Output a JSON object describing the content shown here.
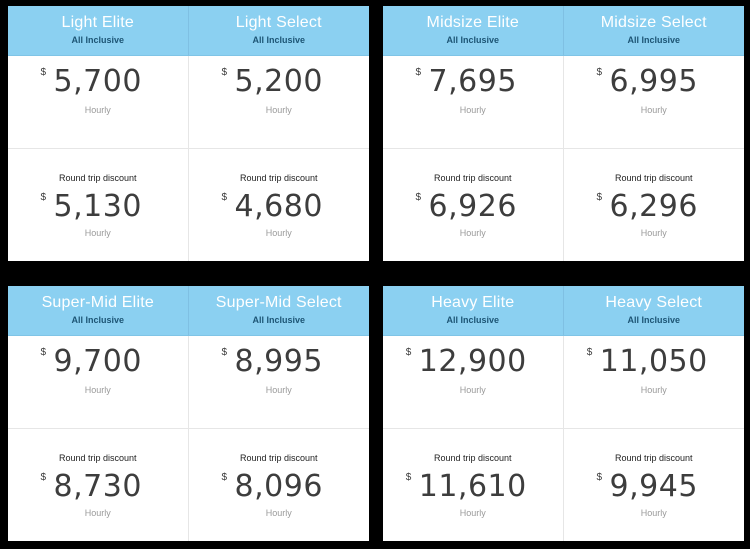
{
  "panels": [
    {
      "columns": [
        {
          "title": "Light Elite",
          "subtitle": "All Inclusive",
          "currency": "$",
          "hourly_price": "5,700",
          "hourly_label": "Hourly",
          "discount_label": "Round trip discount",
          "discount_price": "5,130",
          "discount_unit": "Hourly"
        },
        {
          "title": "Light Select",
          "subtitle": "All Inclusive",
          "currency": "$",
          "hourly_price": "5,200",
          "hourly_label": "Hourly",
          "discount_label": "Round trip discount",
          "discount_price": "4,680",
          "discount_unit": "Hourly"
        }
      ]
    },
    {
      "columns": [
        {
          "title": "Midsize Elite",
          "subtitle": "All Inclusive",
          "currency": "$",
          "hourly_price": "7,695",
          "hourly_label": "Hourly",
          "discount_label": "Round trip discount",
          "discount_price": "6,926",
          "discount_unit": "Hourly"
        },
        {
          "title": "Midsize Select",
          "subtitle": "All Inclusive",
          "currency": "$",
          "hourly_price": "6,995",
          "hourly_label": "Hourly",
          "discount_label": "Round trip discount",
          "discount_price": "6,296",
          "discount_unit": "Hourly"
        }
      ]
    },
    {
      "columns": [
        {
          "title": "Super-Mid Elite",
          "subtitle": "All Inclusive",
          "currency": "$",
          "hourly_price": "9,700",
          "hourly_label": "Hourly",
          "discount_label": "Round trip discount",
          "discount_price": "8,730",
          "discount_unit": "Hourly"
        },
        {
          "title": "Super-Mid Select",
          "subtitle": "All Inclusive",
          "currency": "$",
          "hourly_price": "8,995",
          "hourly_label": "Hourly",
          "discount_label": "Round trip discount",
          "discount_price": "8,096",
          "discount_unit": "Hourly"
        }
      ]
    },
    {
      "columns": [
        {
          "title": "Heavy Elite",
          "subtitle": "All Inclusive",
          "currency": "$",
          "hourly_price": "12,900",
          "hourly_label": "Hourly",
          "discount_label": "Round trip discount",
          "discount_price": "11,610",
          "discount_unit": "Hourly"
        },
        {
          "title": "Heavy Select",
          "subtitle": "All Inclusive",
          "currency": "$",
          "hourly_price": "11,050",
          "hourly_label": "Hourly",
          "discount_label": "Round trip discount",
          "discount_price": "9,945",
          "discount_unit": "Hourly"
        }
      ]
    }
  ],
  "colors": {
    "header_bg": "#8bd0f1",
    "header_title": "#ffffff",
    "header_subtitle": "#1d5575",
    "page_bg": "#000000",
    "price_text": "#3d3d3d"
  }
}
